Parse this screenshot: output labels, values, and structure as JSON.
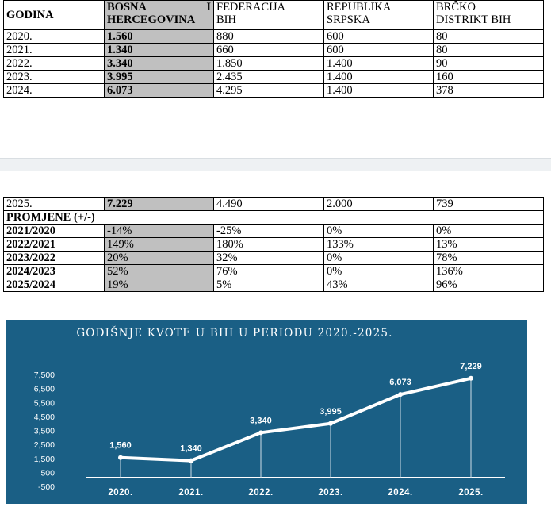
{
  "table": {
    "headers": {
      "godina": "GODINA",
      "bih_line1_a": "BOSNA",
      "bih_line1_b": "I",
      "bih_line2": "HERCEGOVINA",
      "fbih_line1": "FEDERACIJA",
      "fbih_line2": "BIH",
      "rs_line1": "REPUBLIKA",
      "rs_line2": "SRPSKA",
      "brcko_line1": "BRČKO",
      "brcko_line2": "DISTRIKT BIH"
    },
    "rows": [
      {
        "year": "2020.",
        "bih": "1.560",
        "fbih": "880",
        "rs": "600",
        "brcko": "80"
      },
      {
        "year": "2021.",
        "bih": "1.340",
        "fbih": "660",
        "rs": "600",
        "brcko": "80"
      },
      {
        "year": "2022.",
        "bih": "3.340",
        "fbih": "1.850",
        "rs": "1.400",
        "brcko": "90"
      },
      {
        "year": "2023.",
        "bih": "3.995",
        "fbih": "2.435",
        "rs": "1.400",
        "brcko": "160"
      },
      {
        "year": "2024.",
        "bih": "6.073",
        "fbih": "4.295",
        "rs": "1.400",
        "brcko": "378"
      }
    ],
    "row_2025": {
      "year": "2025.",
      "bih": "7.229",
      "fbih": "4.490",
      "rs": "2.000",
      "brcko": "739"
    },
    "changes_label": "PROMJENE (+/-)",
    "changes": [
      {
        "period": "2021/2020",
        "bih": "-14%",
        "fbih": "-25%",
        "rs": "0%",
        "brcko": "0%"
      },
      {
        "period": "2022/2021",
        "bih": "149%",
        "fbih": "180%",
        "rs": "133%",
        "brcko": "13%"
      },
      {
        "period": "2023/2022",
        "bih": "20%",
        "fbih": "32%",
        "rs": "0%",
        "brcko": "78%"
      },
      {
        "period": "2024/2023",
        "bih": "52%",
        "fbih": "76%",
        "rs": "0%",
        "brcko": "136%"
      },
      {
        "period": "2025/2024",
        "bih": "19%",
        "fbih": "5%",
        "rs": "43%",
        "brcko": "96%"
      }
    ]
  },
  "chart_data": {
    "type": "line",
    "title": "GODIŠNJE KVOTE U BIH U PERIODU 2020.-2025.",
    "categories": [
      "2020.",
      "2021.",
      "2022.",
      "2023.",
      "2024.",
      "2025."
    ],
    "values": [
      1560,
      1340,
      3340,
      3995,
      6073,
      7229
    ],
    "data_labels": [
      "1,560",
      "1,340",
      "3,340",
      "3,995",
      "6,073",
      "7,229"
    ],
    "yticks": [
      -500,
      500,
      1500,
      2500,
      3500,
      4500,
      5500,
      6500,
      7500
    ],
    "ytick_labels": [
      "-500",
      "500",
      "1,500",
      "2,500",
      "3,500",
      "4,500",
      "5,500",
      "6,500",
      "7,500"
    ],
    "ylim": [
      -500,
      7500
    ],
    "grid": false,
    "colors": {
      "background": "#1a5f85",
      "line": "#ffffff",
      "text": "#ffffff"
    }
  }
}
